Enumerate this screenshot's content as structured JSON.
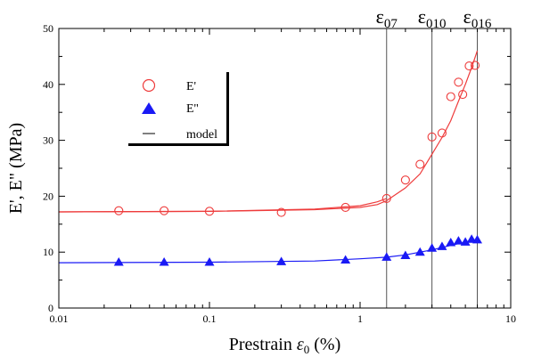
{
  "chart_data": {
    "type": "scatter",
    "title": "",
    "xlabel": "Prestrain ε₀ (%)",
    "ylabel": "E', E\"  (MPa)",
    "x_scale": "log",
    "xlim": [
      0.01,
      10
    ],
    "ylim": [
      0,
      50
    ],
    "x_ticks": [
      "0.01",
      "0.1",
      "1",
      "10"
    ],
    "y_ticks": [
      "0",
      "10",
      "20",
      "30",
      "40",
      "50"
    ],
    "grid": false,
    "legend_position": "upper-left",
    "series": [
      {
        "name": "E'",
        "kind": "scatter",
        "marker": "open-circle",
        "color": "#ee3b3b",
        "x": [
          0.025,
          0.05,
          0.1,
          0.3,
          0.8,
          1.5,
          2.0,
          2.5,
          3.0,
          3.5,
          4.0,
          4.5,
          4.8,
          5.3,
          5.8
        ],
        "y": [
          17.4,
          17.4,
          17.3,
          17.1,
          18.0,
          19.6,
          22.9,
          25.7,
          30.6,
          31.3,
          37.8,
          40.4,
          38.2,
          43.3,
          43.4
        ]
      },
      {
        "name": "E''",
        "kind": "scatter",
        "marker": "filled-triangle",
        "color": "#1a1af5",
        "x": [
          0.025,
          0.05,
          0.1,
          0.3,
          0.8,
          1.5,
          2.0,
          2.5,
          3.0,
          3.5,
          4.0,
          4.5,
          5.0,
          5.5,
          6.0
        ],
        "y": [
          8.2,
          8.2,
          8.2,
          8.3,
          8.6,
          9.1,
          9.4,
          10.0,
          10.7,
          11.0,
          11.7,
          12.0,
          11.8,
          12.3,
          12.2
        ]
      },
      {
        "name": "model",
        "kind": "line",
        "color": "#000000",
        "x": [],
        "y": []
      }
    ],
    "model_curves": [
      {
        "color": "#ee3b3b",
        "x": [
          0.01,
          0.1,
          0.5,
          1.0,
          1.3,
          1.5,
          2.0,
          2.5,
          3.0,
          3.5,
          4.0,
          4.5,
          5.0,
          5.5,
          6.0
        ],
        "y": [
          17.2,
          17.3,
          17.6,
          18.0,
          18.5,
          19.2,
          21.5,
          24.0,
          27.5,
          30.5,
          33.5,
          37.0,
          40.0,
          43.0,
          46.0
        ]
      },
      {
        "color": "#ee3b3b",
        "x": [
          0.01,
          0.1,
          0.5,
          1.0,
          1.3,
          1.5
        ],
        "y": [
          17.2,
          17.3,
          17.7,
          18.3,
          19.0,
          19.6
        ]
      },
      {
        "color": "#1a1af5",
        "x": [
          0.01,
          0.1,
          0.5,
          1.0,
          1.5,
          2.0,
          3.0,
          4.0,
          5.0,
          6.0
        ],
        "y": [
          8.1,
          8.2,
          8.4,
          8.8,
          9.1,
          9.5,
          10.4,
          11.2,
          11.8,
          12.3
        ]
      }
    ],
    "vertical_lines": [
      {
        "x": 1.5,
        "label": "ε",
        "sub": "07"
      },
      {
        "x": 3.0,
        "label": "ε",
        "sub": "010"
      },
      {
        "x": 6.0,
        "label": "ε",
        "sub": "016"
      }
    ],
    "legend": {
      "entries": [
        "E'",
        "E''",
        "model"
      ]
    }
  }
}
